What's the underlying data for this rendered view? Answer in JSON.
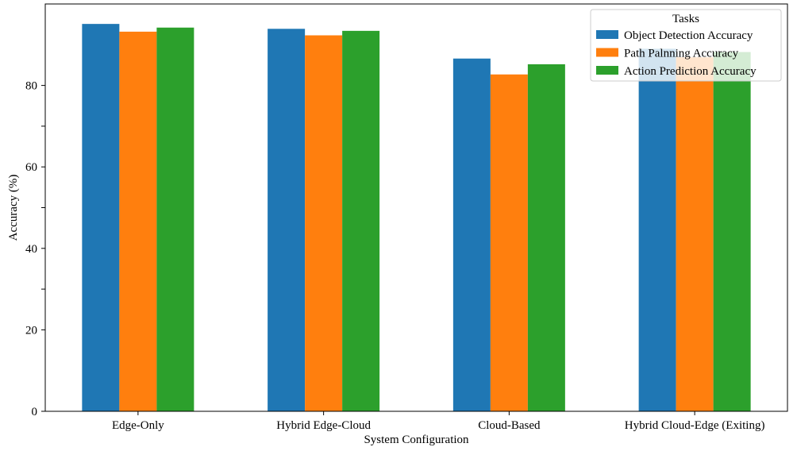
{
  "chart_data": {
    "type": "bar",
    "title": "",
    "xlabel": "System Configuration",
    "ylabel": "Accuracy (%)",
    "categories": [
      "Edge-Only",
      "Hybrid Edge-Cloud",
      "Cloud-Based",
      "Hybrid Cloud-Edge (Exiting)"
    ],
    "series": [
      {
        "name": "Object Detection Accuracy",
        "color": "#1f77b4",
        "values": [
          95.1,
          93.9,
          86.6,
          89.0
        ]
      },
      {
        "name": "Path Palnning Accuracy",
        "color": "#ff7f0e",
        "values": [
          93.2,
          92.3,
          82.7,
          86.9
        ]
      },
      {
        "name": "Action Prediction Accuracy",
        "color": "#2ca02c",
        "values": [
          94.2,
          93.4,
          85.2,
          88.2
        ]
      }
    ],
    "yticks": [
      0,
      20,
      40,
      60,
      80
    ],
    "ylim": [
      0,
      100
    ],
    "legend": {
      "title": "Tasks",
      "placement": "top-right"
    },
    "grid": false
  }
}
